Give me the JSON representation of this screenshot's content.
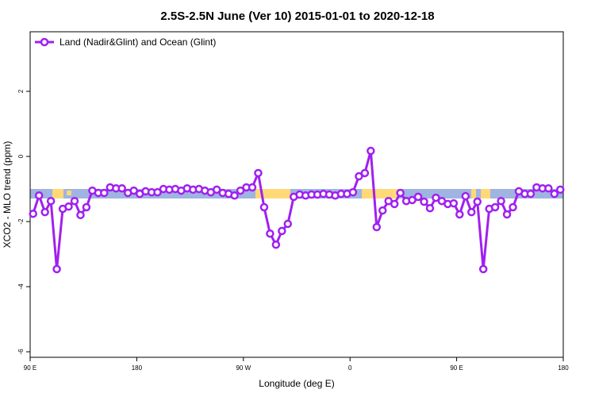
{
  "chart_data": {
    "type": "line",
    "title": "2.5S-2.5N June (Ver 10)   2015-01-01 to 2020-12-18",
    "x_label": "Longitude (deg E)",
    "y_label": "XCO2 - MLO trend (ppm)",
    "xlim": [
      90,
      540
    ],
    "ylim": [
      -6.17,
      3.83
    ],
    "xticks": [
      {
        "value": 90,
        "label": "90 E"
      },
      180,
      {
        "value": 270,
        "label": "90 W"
      },
      {
        "value": 360,
        "label": "0"
      },
      {
        "value": 450,
        "label": "90 E"
      },
      {
        "value": 540,
        "label": "180"
      }
    ],
    "yticks": [
      -6,
      -4,
      -2,
      0,
      2
    ],
    "legend": "top-left",
    "series": [
      {
        "name": "Land (Nadir&Glint) and Ocean (Glint)",
        "color": "#a020f0",
        "x": [
          92.5,
          97.5,
          102.5,
          107.5,
          112.5,
          117.5,
          122.5,
          127.5,
          132.5,
          137.5,
          142.5,
          147.5,
          152.5,
          157.5,
          162.5,
          167.5,
          172.5,
          177.5,
          182.5,
          187.5,
          192.5,
          197.5,
          202.5,
          207.5,
          212.5,
          217.5,
          222.5,
          227.5,
          232.5,
          237.5,
          242.5,
          247.5,
          252.5,
          257.5,
          262.5,
          267.5,
          272.5,
          277.5,
          282.5,
          287.5,
          292.5,
          297.5,
          302.5,
          307.5,
          312.5,
          317.5,
          322.5,
          327.5,
          332.5,
          337.5,
          342.5,
          347.5,
          352.5,
          357.5,
          362.5,
          367.5,
          372.5,
          377.5,
          382.5,
          387.5,
          392.5,
          397.5,
          402.5,
          407.5,
          412.5,
          417.5,
          422.5,
          427.5,
          432.5,
          437.5,
          442.5,
          447.5,
          452.5,
          457.5,
          462.5,
          467.5,
          472.5,
          477.5,
          482.5,
          487.5,
          492.5,
          497.5,
          502.5,
          507.5,
          512.5,
          517.5,
          522.5,
          527.5,
          532.5,
          537.5
        ],
        "values": [
          -1.76,
          -1.2,
          -1.71,
          -1.37,
          -3.46,
          -1.61,
          -1.54,
          -1.37,
          -1.8,
          -1.56,
          -1.05,
          -1.12,
          -1.12,
          -0.95,
          -0.98,
          -0.98,
          -1.12,
          -1.05,
          -1.15,
          -1.07,
          -1.1,
          -1.1,
          -1.0,
          -1.02,
          -1.0,
          -1.05,
          -0.98,
          -1.02,
          -1.0,
          -1.05,
          -1.1,
          -1.02,
          -1.12,
          -1.15,
          -1.2,
          -1.05,
          -0.95,
          -0.95,
          -0.51,
          -1.56,
          -2.37,
          -2.71,
          -2.29,
          -2.07,
          -1.24,
          -1.17,
          -1.2,
          -1.17,
          -1.17,
          -1.15,
          -1.17,
          -1.2,
          -1.15,
          -1.15,
          -1.1,
          -0.61,
          -0.51,
          0.17,
          -2.17,
          -1.66,
          -1.37,
          -1.46,
          -1.12,
          -1.37,
          -1.34,
          -1.24,
          -1.39,
          -1.59,
          -1.27,
          -1.37,
          -1.46,
          -1.44,
          -1.78,
          -1.22,
          -1.71,
          -1.39,
          -3.46,
          -1.61,
          -1.56,
          -1.37,
          -1.78,
          -1.56,
          -1.07,
          -1.15,
          -1.15,
          -0.95,
          -0.98,
          -0.98,
          -1.15,
          -1.02
        ]
      }
    ]
  }
}
